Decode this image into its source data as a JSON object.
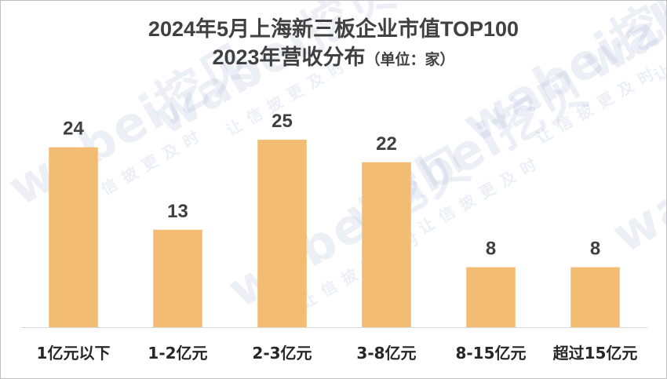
{
  "title_line1": "2024年5月上海新三板企业市值TOP100",
  "title_line2": "2023年营收分布",
  "title_unit": "（单位：家）",
  "watermark": {
    "brand": "wabei挖贝",
    "slogan": "让信披更及时"
  },
  "colors": {
    "bar": "#F2BC72",
    "axis": "#d9d9d9",
    "text": "#404040"
  },
  "chart_data": {
    "type": "bar",
    "title": "2024年5月上海新三板企业市值TOP100 2023年营收分布（单位：家）",
    "categories": [
      "1亿元以下",
      "1-2亿元",
      "2-3亿元",
      "3-8亿元",
      "8-15亿元",
      "超过15亿元"
    ],
    "values": [
      24,
      13,
      25,
      22,
      8,
      8
    ],
    "data_labels": [
      "24",
      "13",
      "25",
      "22",
      "8",
      "8"
    ],
    "xlabel": "",
    "ylabel": "",
    "ylim": [
      0,
      27
    ],
    "grid": false,
    "legend": "none"
  }
}
